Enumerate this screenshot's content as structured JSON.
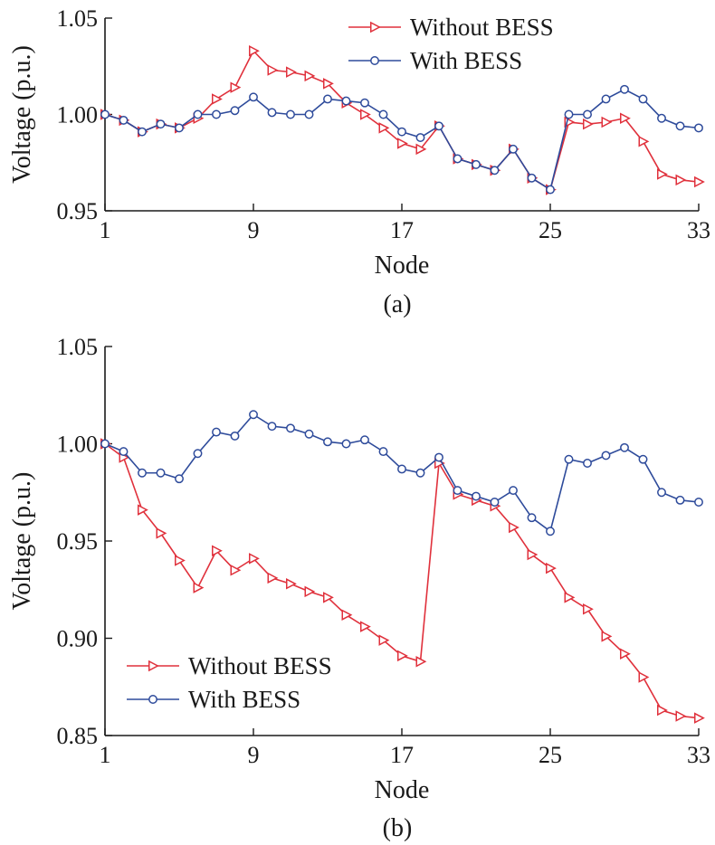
{
  "colors": {
    "without": "#e0313c",
    "with": "#2e4b9b",
    "axis": "#1a1a1a"
  },
  "chart_data": [
    {
      "type": "line",
      "panel_label": "(a)",
      "xlabel": "Node",
      "ylabel": "Voltage (p.u.)",
      "xlim": [
        1,
        33
      ],
      "ylim": [
        0.95,
        1.05
      ],
      "xticks": [
        1,
        9,
        17,
        25,
        33
      ],
      "xtick_labels": [
        "1",
        "9",
        "17",
        "25",
        "33"
      ],
      "yticks": [
        0.95,
        1.0,
        1.05
      ],
      "ytick_labels": [
        "0.95",
        "1.00",
        "1.05"
      ],
      "legend_position": "top-right",
      "x": [
        1,
        2,
        3,
        4,
        5,
        6,
        7,
        8,
        9,
        10,
        11,
        12,
        13,
        14,
        15,
        16,
        17,
        18,
        19,
        20,
        21,
        22,
        23,
        24,
        25,
        26,
        27,
        28,
        29,
        30,
        31,
        32,
        33
      ],
      "series": [
        {
          "name": "Without BESS",
          "marker": "triangle-right",
          "color": "#e0313c",
          "values": [
            1.0,
            0.997,
            0.991,
            0.995,
            0.993,
            0.998,
            1.008,
            1.014,
            1.033,
            1.023,
            1.022,
            1.02,
            1.016,
            1.006,
            1.0,
            0.993,
            0.985,
            0.982,
            0.994,
            0.977,
            0.974,
            0.971,
            0.982,
            0.967,
            0.961,
            0.996,
            0.995,
            0.996,
            0.998,
            0.986,
            0.969,
            0.966,
            0.965
          ]
        },
        {
          "name": "With BESS",
          "marker": "circle",
          "color": "#2e4b9b",
          "values": [
            1.0,
            0.997,
            0.991,
            0.995,
            0.993,
            1.0,
            1.0,
            1.002,
            1.009,
            1.001,
            1.0,
            1.0,
            1.008,
            1.007,
            1.006,
            1.0,
            0.991,
            0.988,
            0.994,
            0.977,
            0.974,
            0.971,
            0.982,
            0.967,
            0.961,
            1.0,
            1.0,
            1.008,
            1.013,
            1.008,
            0.998,
            0.994,
            0.993
          ]
        }
      ]
    },
    {
      "type": "line",
      "panel_label": "(b)",
      "xlabel": "Node",
      "ylabel": "Voltage (p.u.)",
      "xlim": [
        1,
        33
      ],
      "ylim": [
        0.85,
        1.05
      ],
      "xticks": [
        1,
        9,
        17,
        25,
        33
      ],
      "xtick_labels": [
        "1",
        "9",
        "17",
        "25",
        "33"
      ],
      "yticks": [
        0.85,
        0.9,
        0.95,
        1.0,
        1.05
      ],
      "ytick_labels": [
        "0.85",
        "0.90",
        "0.95",
        "1.00",
        "1.05"
      ],
      "legend_position": "bottom-left",
      "x": [
        1,
        2,
        3,
        4,
        5,
        6,
        7,
        8,
        9,
        10,
        11,
        12,
        13,
        14,
        15,
        16,
        17,
        18,
        19,
        20,
        21,
        22,
        23,
        24,
        25,
        26,
        27,
        28,
        29,
        30,
        31,
        32,
        33
      ],
      "series": [
        {
          "name": "Without BESS",
          "marker": "triangle-right",
          "color": "#e0313c",
          "values": [
            1.0,
            0.993,
            0.966,
            0.954,
            0.94,
            0.926,
            0.945,
            0.935,
            0.941,
            0.931,
            0.928,
            0.924,
            0.921,
            0.912,
            0.906,
            0.899,
            0.891,
            0.888,
            0.99,
            0.974,
            0.971,
            0.968,
            0.957,
            0.943,
            0.936,
            0.921,
            0.915,
            0.901,
            0.892,
            0.88,
            0.863,
            0.86,
            0.859
          ]
        },
        {
          "name": "With BESS",
          "marker": "circle",
          "color": "#2e4b9b",
          "values": [
            1.0,
            0.996,
            0.985,
            0.985,
            0.982,
            0.995,
            1.006,
            1.004,
            1.015,
            1.009,
            1.008,
            1.005,
            1.001,
            1.0,
            1.002,
            0.996,
            0.987,
            0.985,
            0.993,
            0.976,
            0.973,
            0.97,
            0.976,
            0.962,
            0.955,
            0.992,
            0.99,
            0.994,
            0.998,
            0.992,
            0.975,
            0.971,
            0.97
          ]
        }
      ]
    }
  ]
}
